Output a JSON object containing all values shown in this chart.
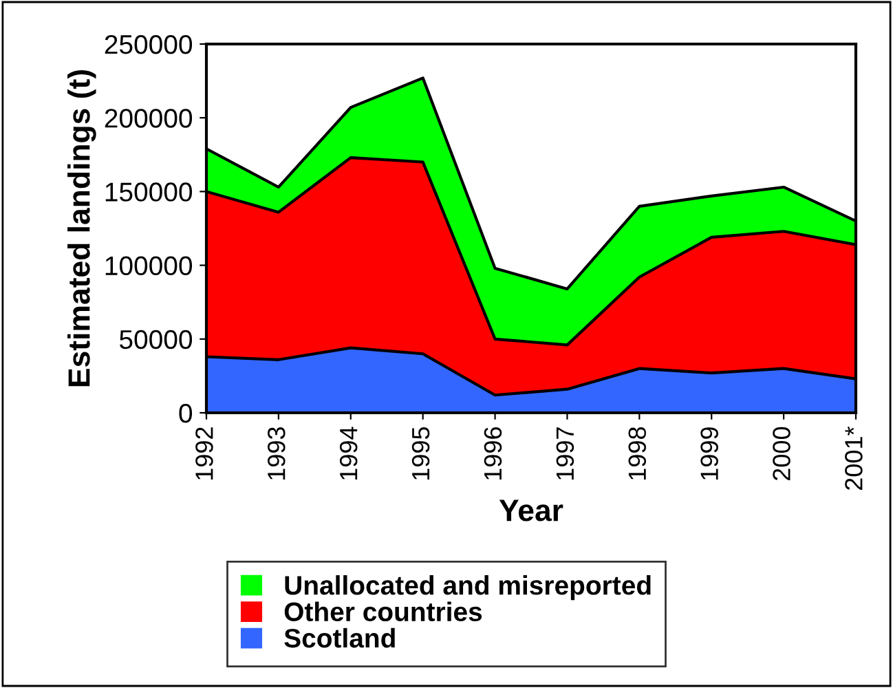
{
  "chart_data": {
    "type": "area",
    "stacked": true,
    "xlabel": "Year",
    "ylabel": "Estimated landings (t)",
    "categories": [
      "1992",
      "1993",
      "1994",
      "1995",
      "1996",
      "1997",
      "1998",
      "1999",
      "2000",
      "2001*"
    ],
    "series": [
      {
        "name": "Scotland",
        "color": "#3366ff",
        "values": [
          38000,
          36000,
          44000,
          40000,
          12000,
          16000,
          30000,
          27000,
          30000,
          23000
        ]
      },
      {
        "name": "Other countries",
        "color": "#ff0000",
        "values": [
          112000,
          100000,
          129000,
          130000,
          38000,
          30000,
          62000,
          92000,
          93000,
          91000
        ]
      },
      {
        "name": "Unallocated and misreported",
        "color": "#00ff00",
        "values": [
          29000,
          17000,
          34000,
          57000,
          48000,
          38000,
          48000,
          28000,
          30000,
          16000
        ]
      }
    ],
    "ylim": [
      0,
      250000
    ],
    "yticks": [
      0,
      50000,
      100000,
      150000,
      200000,
      250000
    ],
    "grid": false,
    "legend": "bottom"
  }
}
